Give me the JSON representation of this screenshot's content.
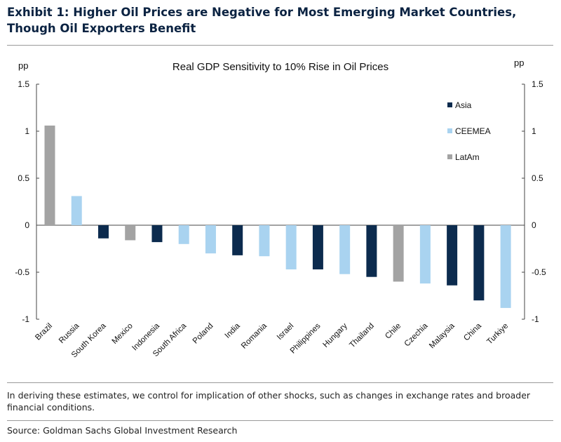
{
  "header": {
    "exhibit_title": "Exhibit 1: Higher Oil Prices are Negative for Most Emerging Market Countries, Though Oil Exporters Benefit"
  },
  "chart_data": {
    "type": "bar",
    "title": "Real GDP Sensitivity to 10% Rise in Oil Prices",
    "ylabel_left": "pp",
    "ylabel_right": "pp",
    "ylim": [
      -1,
      1.5
    ],
    "yticks": [
      1.5,
      1,
      0.5,
      0,
      -0.5,
      -1
    ],
    "ytick_labels": [
      "1.5",
      "1",
      "0.5",
      "0",
      "-0.5",
      "-1"
    ],
    "categories": [
      "Brazil",
      "Russia",
      "South Korea",
      "Mexico",
      "Indonesia",
      "South Africa",
      "Poland",
      "India",
      "Romania",
      "Israel",
      "Philippines",
      "Hungary",
      "Thailand",
      "Chile",
      "Czechia",
      "Malaysia",
      "China",
      "Turkiye"
    ],
    "values": [
      1.06,
      0.31,
      -0.14,
      -0.16,
      -0.18,
      -0.2,
      -0.3,
      -0.32,
      -0.33,
      -0.47,
      -0.47,
      -0.52,
      -0.55,
      -0.6,
      -0.62,
      -0.64,
      -0.8,
      -0.88
    ],
    "groups": [
      "LatAm",
      "CEEMEA",
      "Asia",
      "LatAm",
      "Asia",
      "CEEMEA",
      "CEEMEA",
      "Asia",
      "CEEMEA",
      "CEEMEA",
      "Asia",
      "CEEMEA",
      "Asia",
      "LatAm",
      "CEEMEA",
      "Asia",
      "Asia",
      "CEEMEA"
    ],
    "legend": [
      {
        "name": "Asia",
        "color": "#0c2b4e"
      },
      {
        "name": "CEEMEA",
        "color": "#a9d3f0"
      },
      {
        "name": "LatAm",
        "color": "#a3a3a3"
      }
    ],
    "legend_position": "top-right",
    "grid": false
  },
  "footer": {
    "note": "In deriving these estimates, we control for implication of other shocks, such as changes in exchange rates and broader financial conditions.",
    "source": "Source: Goldman Sachs Global Investment Research"
  }
}
